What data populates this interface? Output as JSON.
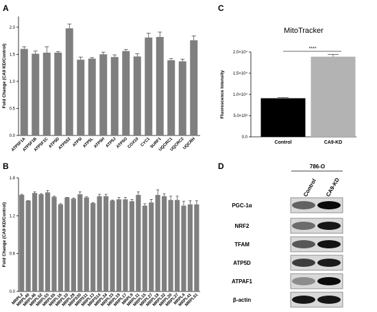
{
  "panels": {
    "a": "A",
    "b": "B",
    "c": "C",
    "d": "D"
  },
  "colors": {
    "bar_grey": "#7f7f7f",
    "control_black": "#000000",
    "ca9kd_grey": "#b3b3b3",
    "axis": "#000000"
  },
  "chart_data": [
    {
      "id": "A",
      "type": "bar",
      "ylabel": "Fold Change (CA9 KD/Control)",
      "ylim": [
        0,
        2.2
      ],
      "yticks": [
        "0.0",
        "0.5",
        "1.0",
        "1.5",
        "2.0"
      ],
      "categories": [
        "ATP5F1A",
        "ATP5F1B",
        "ATP5F1C",
        "ATP5D",
        "ATP5S2",
        "ATP5I",
        "ATP5L",
        "ATP5H",
        "ATP5J",
        "ATP5O",
        "COX10",
        "CYC1",
        "SURF1",
        "UQCRC1",
        "UQCRC2",
        "UQCRH"
      ],
      "values": [
        1.6,
        1.51,
        1.53,
        1.53,
        1.98,
        1.4,
        1.42,
        1.5,
        1.45,
        1.56,
        1.46,
        1.81,
        1.82,
        1.39,
        1.37,
        1.76
      ],
      "errors": [
        0.04,
        0.05,
        0.11,
        0.02,
        0.08,
        0.05,
        0.02,
        0.04,
        0.04,
        0.03,
        0.05,
        0.08,
        0.09,
        0.03,
        0.04,
        0.08
      ]
    },
    {
      "id": "B",
      "type": "bar",
      "ylabel": "Fold Change (CA9 KD/Control)",
      "ylim": [
        0,
        1.8
      ],
      "yticks": [
        "0.0",
        "0.6",
        "1.2",
        "1.8"
      ],
      "categories": [
        "MRPL2",
        "MRPL40",
        "MRPL46",
        "MRPL52",
        "MRPL53",
        "MRPL55",
        "MRPL16",
        "MRPL10",
        "MRPL28",
        "MRPS30",
        "MRPS11",
        "MRPL13",
        "MRPS14",
        "MRPL34",
        "MRPL33",
        "MRPL19",
        "MRPL17",
        "MRPL9",
        "MRPL11",
        "MRPL15",
        "MRPL27",
        "MRPL18",
        "MRPL32",
        "MRPL20",
        "MRPL37",
        "MRPL4",
        "MRPL41",
        "MRPL51"
      ],
      "values": [
        1.53,
        1.44,
        1.56,
        1.54,
        1.57,
        1.5,
        1.38,
        1.49,
        1.47,
        1.54,
        1.49,
        1.4,
        1.51,
        1.51,
        1.44,
        1.46,
        1.46,
        1.43,
        1.53,
        1.36,
        1.41,
        1.53,
        1.51,
        1.45,
        1.45,
        1.36,
        1.38,
        1.38
      ],
      "errors": [
        0.01,
        0.0,
        0.02,
        0.01,
        0.03,
        0.01,
        0.01,
        0.0,
        0.01,
        0.04,
        0.01,
        0.01,
        0.03,
        0.03,
        0.01,
        0.03,
        0.03,
        0.03,
        0.05,
        0.03,
        0.05,
        0.08,
        0.04,
        0.06,
        0.06,
        0.07,
        0.06,
        0.06
      ]
    },
    {
      "id": "C",
      "type": "bar",
      "title": "MitoTracker",
      "ylabel": "Fluorescence Intensity",
      "ylim": [
        0,
        20000
      ],
      "yticks": [
        "0.0",
        "5.0×10³",
        "1.0×10⁴",
        "1.5×10⁴",
        "2.0×10⁴"
      ],
      "categories": [
        "Control",
        "CA9-KD"
      ],
      "values": [
        9100,
        18900
      ],
      "errors": [
        150,
        550
      ],
      "significance": "****"
    }
  ],
  "western_blot": {
    "cell_line": "786-O",
    "lanes": [
      "Control",
      "CA9-KD"
    ],
    "proteins": [
      "PGC-1α",
      "NRF2",
      "TFAM",
      "ATP5D",
      "ATPAF1",
      "β-actin"
    ]
  }
}
